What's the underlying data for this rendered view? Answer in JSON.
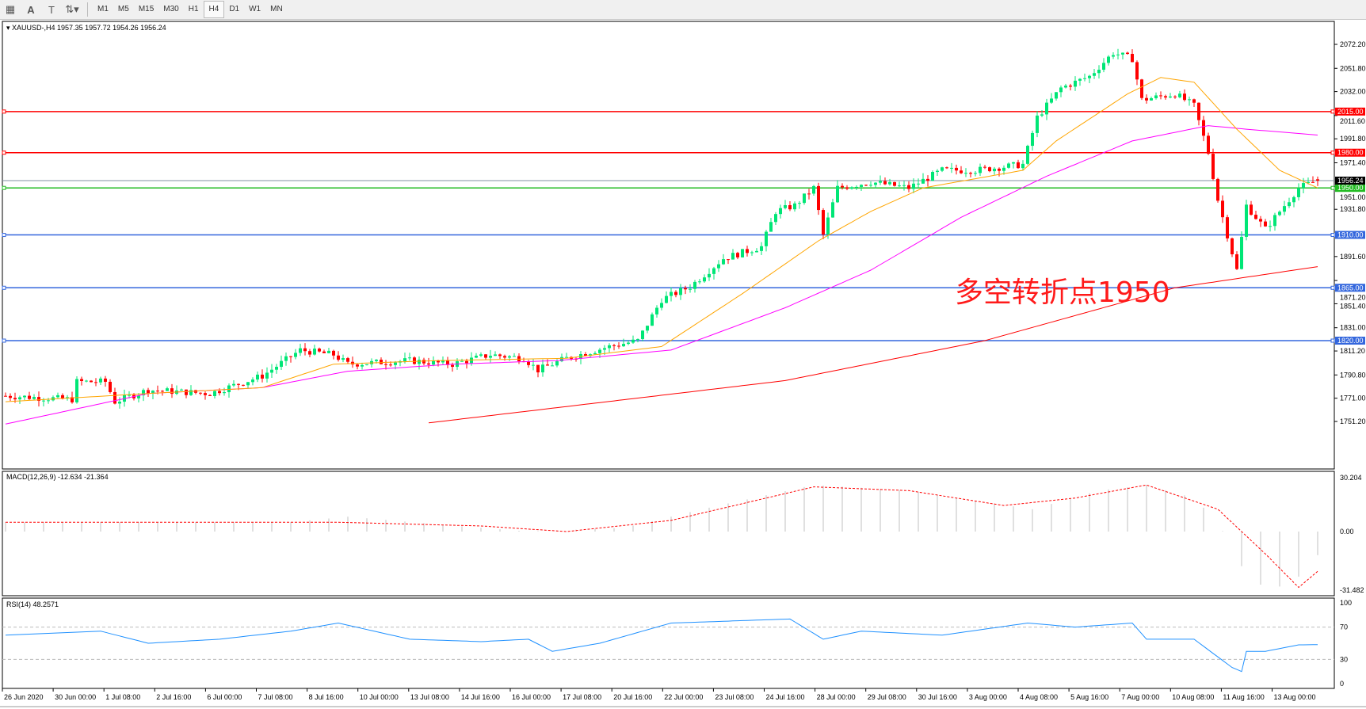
{
  "toolbar": {
    "icons": [
      "grid-icon",
      "text-A-icon",
      "text-label-icon",
      "arrows-icon"
    ],
    "timeframes": [
      "M1",
      "M5",
      "M15",
      "M30",
      "H1",
      "H4",
      "D1",
      "W1",
      "MN"
    ],
    "active_timeframe": "H4"
  },
  "chart_header": {
    "symbol_line": "XAUUSD-,H4  1957.35 1957.72 1954.26 1956.24"
  },
  "annotation": "多空转折点1950",
  "colors": {
    "bull": "#00e676",
    "bear": "#ff0000",
    "ma_fast": "#ffa500",
    "ma_mid": "#ff00ff",
    "ma_slow": "#ff0000",
    "support": "#3366dd",
    "level_green": "#22bb22",
    "macd_hist": "#c0c0c0",
    "macd_signal": "#ff0000",
    "rsi": "#1e90ff"
  },
  "chart_data": [
    {
      "type": "candlestick",
      "title": "XAUUSD-,H4",
      "ohlc_last": {
        "open": 1957.35,
        "high": 1957.72,
        "low": 1954.26,
        "close": 1956.24
      },
      "ylim": [
        1751.2,
        2082
      ],
      "y_ticks": [
        "2072.20",
        "2051.80",
        "2032.00",
        "2011.60",
        "1991.80",
        "1971.40",
        "1951.00",
        "1931.80",
        "1891.60",
        "1871.20",
        "1851.40",
        "1831.00",
        "1811.20",
        "1790.80",
        "1771.00",
        "1751.20"
      ],
      "x_ticks": [
        "26 Jun 2020",
        "30 Jun 00:00",
        "1 Jul 08:00",
        "2 Jul 16:00",
        "6 Jul 00:00",
        "7 Jul 08:00",
        "8 Jul 16:00",
        "10 Jul 00:00",
        "13 Jul 08:00",
        "14 Jul 16:00",
        "16 Jul 00:00",
        "17 Jul 08:00",
        "20 Jul 16:00",
        "22 Jul 00:00",
        "23 Jul 08:00",
        "24 Jul 16:00",
        "28 Jul 00:00",
        "29 Jul 08:00",
        "30 Jul 16:00",
        "3 Aug 00:00",
        "4 Aug 08:00",
        "5 Aug 16:00",
        "7 Aug 00:00",
        "10 Aug 08:00",
        "11 Aug 16:00",
        "13 Aug 00:00"
      ],
      "bars": 277,
      "close_path": [
        [
          0,
          1773
        ],
        [
          14,
          1770
        ],
        [
          15,
          1785
        ],
        [
          21,
          1785
        ],
        [
          23,
          1768
        ],
        [
          30,
          1778
        ],
        [
          43,
          1775
        ],
        [
          54,
          1790
        ],
        [
          62,
          1812
        ],
        [
          69,
          1808
        ],
        [
          72,
          1800
        ],
        [
          85,
          1803
        ],
        [
          94,
          1800
        ],
        [
          102,
          1808
        ],
        [
          109,
          1805
        ],
        [
          112,
          1795
        ],
        [
          118,
          1805
        ],
        [
          127,
          1815
        ],
        [
          133,
          1820
        ],
        [
          138,
          1855
        ],
        [
          144,
          1866
        ],
        [
          151,
          1890
        ],
        [
          159,
          1900
        ],
        [
          162,
          1930
        ],
        [
          166,
          1935
        ],
        [
          170,
          1950
        ],
        [
          172,
          1910
        ],
        [
          175,
          1950
        ],
        [
          182,
          1955
        ],
        [
          190,
          1950
        ],
        [
          197,
          1965
        ],
        [
          204,
          1965
        ],
        [
          214,
          1970
        ],
        [
          217,
          2010
        ],
        [
          222,
          2035
        ],
        [
          228,
          2045
        ],
        [
          233,
          2065
        ],
        [
          237,
          2060
        ],
        [
          239,
          2025
        ],
        [
          246,
          2030
        ],
        [
          250,
          2020
        ],
        [
          253,
          1980
        ],
        [
          255,
          1940
        ],
        [
          257,
          1910
        ],
        [
          259,
          1880
        ],
        [
          261,
          1935
        ],
        [
          265,
          1915
        ],
        [
          268,
          1930
        ],
        [
          272,
          1950
        ],
        [
          276,
          1956.24
        ]
      ],
      "ma_fast": [
        [
          0,
          1768
        ],
        [
          30,
          1775
        ],
        [
          54,
          1780
        ],
        [
          69,
          1800
        ],
        [
          91,
          1803
        ],
        [
          118,
          1805
        ],
        [
          138,
          1815
        ],
        [
          155,
          1860
        ],
        [
          171,
          1905
        ],
        [
          182,
          1930
        ],
        [
          193,
          1950
        ],
        [
          214,
          1965
        ],
        [
          221,
          1990
        ],
        [
          236,
          2030
        ],
        [
          243,
          2044
        ],
        [
          250,
          2040
        ],
        [
          259,
          2000
        ],
        [
          268,
          1965
        ],
        [
          276,
          1950
        ]
      ],
      "ma_mid": [
        [
          0,
          1749
        ],
        [
          30,
          1775
        ],
        [
          54,
          1780
        ],
        [
          72,
          1794
        ],
        [
          94,
          1800
        ],
        [
          116,
          1803
        ],
        [
          140,
          1812
        ],
        [
          164,
          1848
        ],
        [
          182,
          1880
        ],
        [
          201,
          1925
        ],
        [
          219,
          1960
        ],
        [
          237,
          1990
        ],
        [
          253,
          2003
        ],
        [
          261,
          2000
        ],
        [
          276,
          1995
        ]
      ],
      "ma_slow": [
        [
          89,
          1750
        ],
        [
          164,
          1786
        ],
        [
          206,
          1820
        ],
        [
          246,
          1865
        ],
        [
          276,
          1883
        ]
      ],
      "levels": [
        {
          "price": 2015.0,
          "label": "2015.00",
          "color": "#ff0000"
        },
        {
          "price": 1980.0,
          "label": "1980.00",
          "color": "#ff0000"
        },
        {
          "price": 1950.0,
          "label": "1950.00",
          "color": "#22bb22"
        },
        {
          "price": 1910.0,
          "label": "1910.00",
          "color": "#3366dd"
        },
        {
          "price": 1865.0,
          "label": "1865.00",
          "color": "#3366dd"
        },
        {
          "price": 1820.0,
          "label": "1820.00",
          "color": "#3366dd"
        }
      ],
      "current_price": {
        "price": 1956.24,
        "label": "1956.24"
      }
    },
    {
      "type": "bar",
      "title": "MACD(12,26,9) -12.634 -21.364",
      "y_ticks": [
        "30.204",
        "0.00",
        "-31.482"
      ],
      "ylim": [
        -31.482,
        30.204
      ],
      "histogram": [
        [
          0,
          5
        ],
        [
          60,
          5
        ],
        [
          72,
          8
        ],
        [
          95,
          3
        ],
        [
          110,
          0
        ],
        [
          130,
          2
        ],
        [
          150,
          14
        ],
        [
          170,
          25
        ],
        [
          190,
          22
        ],
        [
          200,
          18
        ],
        [
          216,
          12
        ],
        [
          230,
          22
        ],
        [
          240,
          25
        ],
        [
          250,
          18
        ],
        [
          255,
          5
        ],
        [
          262,
          -28
        ],
        [
          270,
          -30
        ],
        [
          276,
          -12.634
        ]
      ],
      "signal": [
        [
          0,
          5
        ],
        [
          70,
          5
        ],
        [
          100,
          3
        ],
        [
          118,
          0
        ],
        [
          140,
          6
        ],
        [
          170,
          24
        ],
        [
          190,
          22
        ],
        [
          210,
          14
        ],
        [
          225,
          18
        ],
        [
          240,
          25
        ],
        [
          255,
          12
        ],
        [
          265,
          -12
        ],
        [
          272,
          -30
        ],
        [
          276,
          -21.364
        ]
      ]
    },
    {
      "type": "line",
      "title": "RSI(14) 48.2571",
      "y_ticks": [
        "100",
        "70",
        "30",
        "0"
      ],
      "ylim": [
        0,
        100
      ],
      "values": [
        [
          0,
          60
        ],
        [
          20,
          65
        ],
        [
          30,
          50
        ],
        [
          45,
          55
        ],
        [
          60,
          65
        ],
        [
          70,
          75
        ],
        [
          85,
          55
        ],
        [
          100,
          52
        ],
        [
          110,
          55
        ],
        [
          115,
          40
        ],
        [
          125,
          50
        ],
        [
          140,
          75
        ],
        [
          165,
          80
        ],
        [
          172,
          55
        ],
        [
          180,
          65
        ],
        [
          197,
          60
        ],
        [
          215,
          75
        ],
        [
          225,
          70
        ],
        [
          237,
          75
        ],
        [
          240,
          55
        ],
        [
          250,
          55
        ],
        [
          258,
          20
        ],
        [
          260,
          15
        ],
        [
          261,
          40
        ],
        [
          265,
          40
        ],
        [
          272,
          48
        ],
        [
          276,
          48.2571
        ]
      ]
    }
  ]
}
